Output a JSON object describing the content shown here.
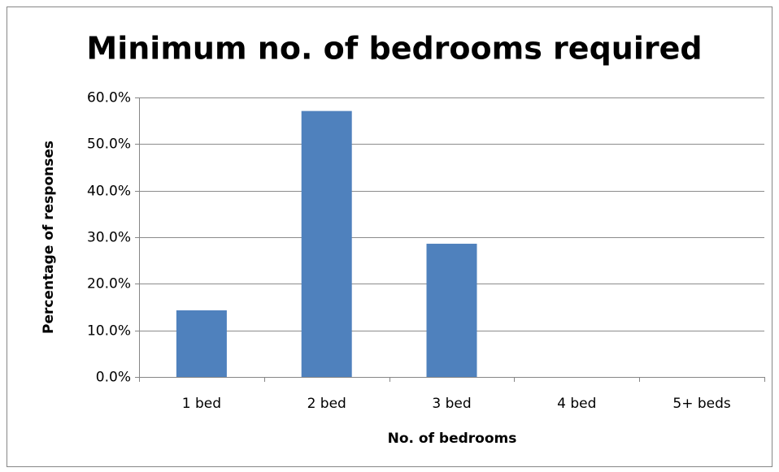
{
  "chart_data": {
    "type": "bar",
    "title": "Minimum no. of bedrooms required",
    "x_label": "No. of bedrooms",
    "y_label": "Percentage of responses",
    "categories": [
      "1 bed",
      "2 bed",
      "3 bed",
      "4 bed",
      "5+ beds"
    ],
    "values": [
      14.3,
      57.1,
      28.6,
      0,
      0
    ],
    "color": "#4f81bd",
    "ylim": [
      0,
      60
    ],
    "yticks": [
      {
        "value": 0,
        "label": "0.0%"
      },
      {
        "value": 10,
        "label": "10.0%"
      },
      {
        "value": 20,
        "label": "20.0%"
      },
      {
        "value": 30,
        "label": "30.0%"
      },
      {
        "value": 40,
        "label": "40.0%"
      },
      {
        "value": 50,
        "label": "50.0%"
      },
      {
        "value": 60,
        "label": "60.0%"
      }
    ],
    "grid": true
  }
}
